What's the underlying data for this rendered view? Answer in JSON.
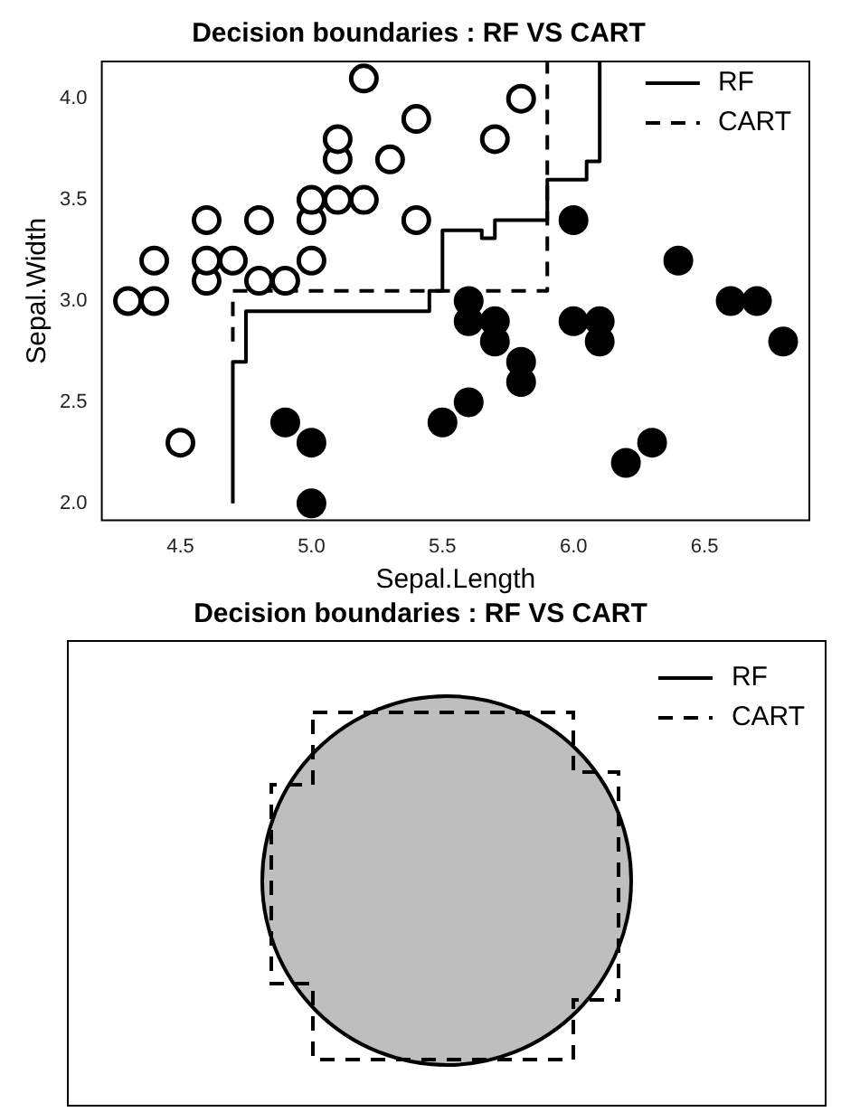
{
  "chart_data": [
    {
      "type": "scatter",
      "title": "Decision boundaries : RF VS CART",
      "xlabel": "Sepal.Length",
      "ylabel": "Sepal.Width",
      "xlim": [
        4.2,
        6.9
      ],
      "ylim": [
        1.916,
        4.184
      ],
      "xticks": [
        4.5,
        {
          "value": 5,
          "label": "5.0"
        },
        5.5,
        {
          "value": 6,
          "label": "6.0"
        },
        6.5
      ],
      "yticks": [
        {
          "value": 2,
          "label": "2.0"
        },
        2.5,
        {
          "value": 3,
          "label": "3.0"
        },
        3.5,
        {
          "value": 4,
          "label": "4.0"
        }
      ],
      "legend": "top right",
      "marker": "circle",
      "series": [
        {
          "type": "scatter",
          "color": "#ffffff",
          "x": [
            4.3,
            4.4,
            4.4,
            4.5,
            4.6,
            4.6,
            4.6,
            4.7,
            4.8,
            4.8,
            4.9,
            5.0,
            5.0,
            5.0,
            5.1,
            5.1,
            5.1,
            5.2,
            5.2,
            5.3,
            5.4,
            5.4,
            5.7,
            5.8
          ],
          "values": [
            3.0,
            3.0,
            3.2,
            2.3,
            3.1,
            3.2,
            3.4,
            3.2,
            3.1,
            3.4,
            3.1,
            3.2,
            3.4,
            3.5,
            3.5,
            3.7,
            3.8,
            3.5,
            4.1,
            3.7,
            3.4,
            3.9,
            3.8,
            4.0
          ]
        },
        {
          "type": "scatter",
          "color": "#000000",
          "x": [
            4.9,
            5.0,
            5.0,
            5.5,
            5.6,
            5.6,
            5.6,
            5.7,
            5.7,
            5.8,
            5.8,
            6.0,
            6.0,
            6.1,
            6.1,
            6.2,
            6.3,
            6.4,
            6.6,
            6.7,
            6.8
          ],
          "values": [
            2.4,
            2.3,
            2.0,
            2.4,
            2.5,
            2.9,
            3.0,
            2.8,
            2.9,
            2.6,
            2.7,
            2.9,
            3.4,
            2.8,
            2.9,
            2.2,
            2.3,
            3.2,
            3.0,
            3.0,
            2.8
          ]
        },
        {
          "type": "line",
          "name": "RF",
          "color": "#000000",
          "line_style": "solid",
          "marker": "none",
          "x": [
            4.7,
            4.7,
            4.75,
            4.75,
            5.45,
            5.45,
            5.5,
            5.5,
            5.65,
            5.65,
            5.7,
            5.7,
            5.9,
            5.9,
            6.05,
            6.05,
            6.1,
            6.1
          ],
          "values": [
            2.0,
            2.7,
            2.7,
            2.95,
            2.95,
            3.05,
            3.05,
            3.35,
            3.35,
            3.31,
            3.31,
            3.4,
            3.4,
            3.6,
            3.6,
            3.69,
            3.69,
            4.18
          ]
        },
        {
          "type": "line",
          "name": "CART",
          "color": "#000000",
          "line_style": "dashed",
          "marker": "none",
          "x": [
            4.7,
            4.7,
            5.9,
            5.9
          ],
          "values": [
            2.8,
            3.05,
            3.05,
            4.18
          ]
        }
      ]
    },
    {
      "type": "other",
      "title": "Decision boundaries : RF VS CART",
      "legend": "top right",
      "series": [
        {
          "name": "RF",
          "color": "#000000",
          "line_style": "solid"
        },
        {
          "name": "CART",
          "color": "#000000",
          "line_style": "dashed"
        }
      ]
    }
  ]
}
